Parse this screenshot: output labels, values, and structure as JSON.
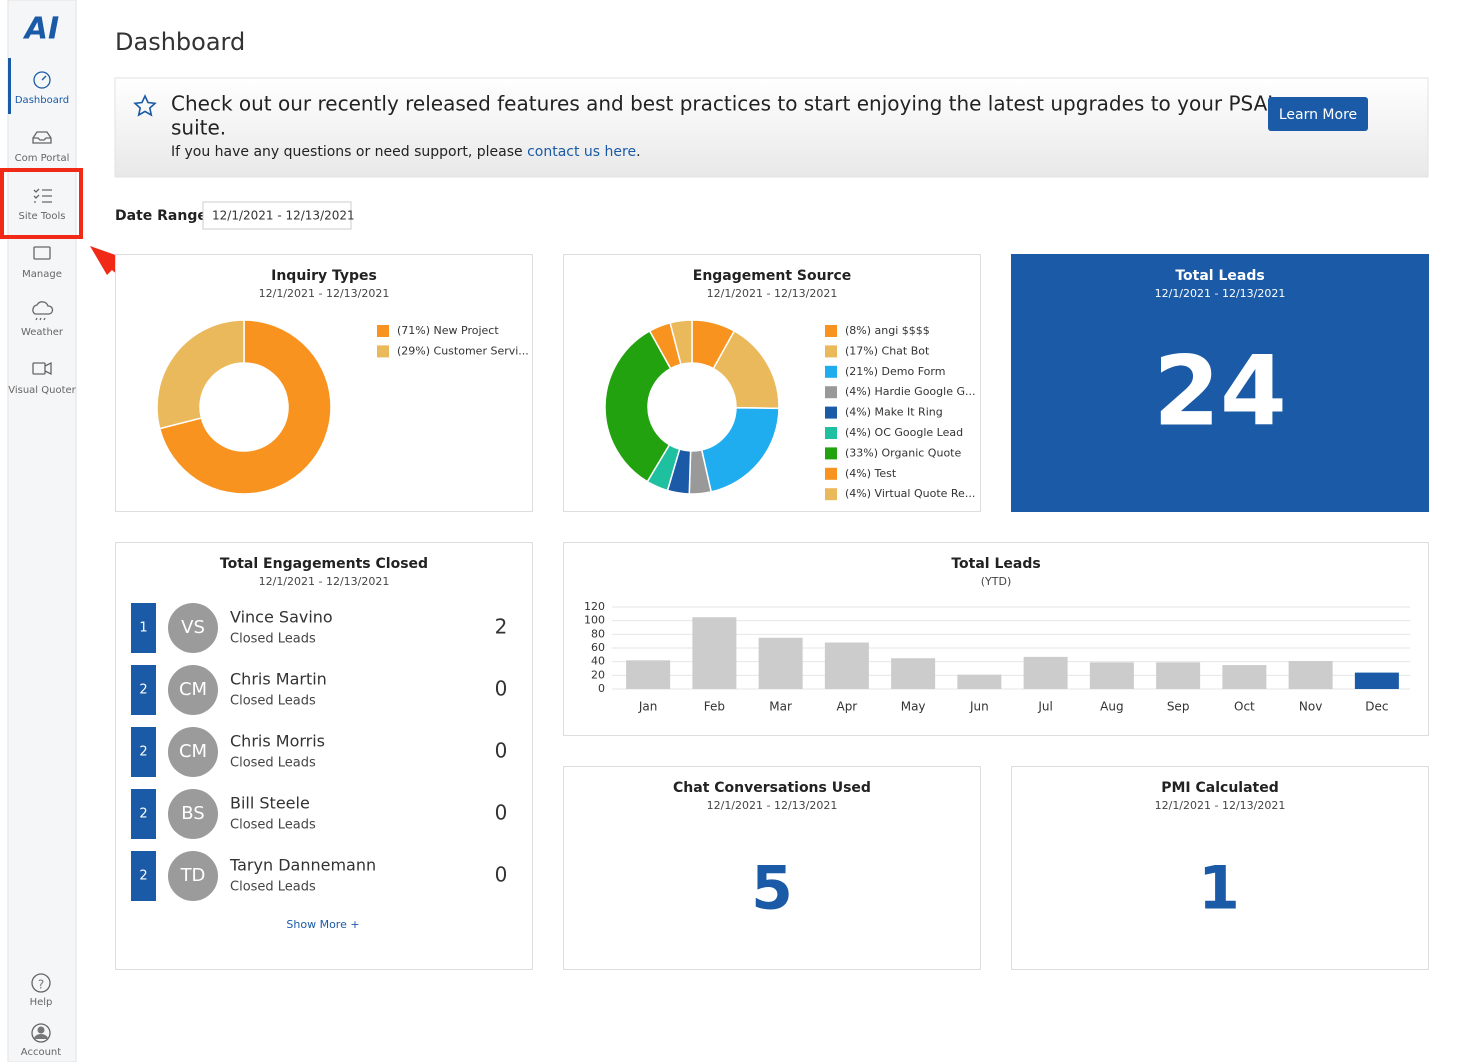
{
  "sidebar": {
    "logo": "AI",
    "nav": [
      {
        "label": "Dashboard",
        "active": true
      },
      {
        "label": "Com Portal",
        "active": false
      },
      {
        "label": "Site Tools",
        "active": false
      },
      {
        "label": "Manage",
        "active": false
      },
      {
        "label": "Weather",
        "active": false
      },
      {
        "label": "Visual Quoter",
        "active": false
      }
    ],
    "bottom": [
      {
        "label": "Help"
      },
      {
        "label": "Account"
      }
    ]
  },
  "header": {
    "title": "Dashboard"
  },
  "banner": {
    "message_lines": [
      "Check out our recently released features and best practices to start enjoying the latest upgrades to your PSAI",
      "suite."
    ],
    "support_text": "If you have any questions or need support, please ",
    "support_link": "contact us here",
    "support_end": ".",
    "button": "Learn More"
  },
  "date_range": {
    "label": "Date Range",
    "value": "12/1/2021 - 12/13/2021"
  },
  "inquiry_types": {
    "type": "donut",
    "title": "Inquiry Types",
    "subtitle": "12/1/2021 - 12/13/2021",
    "legend": [
      "(71%) New Project",
      "(29%) Customer Servi..."
    ],
    "values": [
      71,
      29
    ],
    "colors": [
      "#f7931e",
      "#e9b95b"
    ]
  },
  "engagement_source": {
    "type": "donut",
    "title": "Engagement Source",
    "subtitle": "12/1/2021 - 12/13/2021",
    "legend": [
      "(8%) angi $$$$",
      "(17%) Chat Bot",
      "(21%) Demo Form",
      "(4%) Hardie Google G...",
      "(4%) Make It Ring",
      "(4%) OC Google Lead",
      "(33%) Organic Quote",
      "(4%) Test",
      "(4%) Virtual Quote Re..."
    ],
    "values": [
      8,
      17,
      21,
      4,
      4,
      4,
      33,
      4,
      4
    ],
    "colors": [
      "#f7931e",
      "#e9b95b",
      "#1fadf0",
      "#999999",
      "#1a5aa6",
      "#1fc0a0",
      "#22a20f",
      "#f7931e",
      "#e9b95b"
    ]
  },
  "total_leads_card": {
    "title": "Total Leads",
    "subtitle": "12/1/2021 - 12/13/2021",
    "value": 24
  },
  "engagements_closed": {
    "title": "Total Engagements Closed",
    "subtitle": "12/1/2021 - 12/13/2021",
    "rows": [
      {
        "rank": 1,
        "initials": "VS",
        "name": "Vince Savino",
        "caption": "Closed Leads",
        "count": 2
      },
      {
        "rank": 2,
        "initials": "CM",
        "name": "Chris Martin",
        "caption": "Closed Leads",
        "count": 0
      },
      {
        "rank": 2,
        "initials": "CM",
        "name": "Chris Morris",
        "caption": "Closed Leads",
        "count": 0
      },
      {
        "rank": 2,
        "initials": "BS",
        "name": "Bill Steele",
        "caption": "Closed Leads",
        "count": 0
      },
      {
        "rank": 2,
        "initials": "TD",
        "name": "Taryn Dannemann",
        "caption": "Closed Leads",
        "count": 0
      }
    ],
    "show_more": "Show More +"
  },
  "total_leads_chart": {
    "type": "bar",
    "title": "Total Leads",
    "subtitle": "(YTD)",
    "categories": [
      "Jan",
      "Feb",
      "Mar",
      "Apr",
      "May",
      "Jun",
      "Jul",
      "Aug",
      "Sep",
      "Oct",
      "Nov",
      "Dec"
    ],
    "values": [
      42,
      105,
      75,
      68,
      45,
      21,
      47,
      39,
      39,
      35,
      41,
      24
    ],
    "colors": [
      "#cccccc",
      "#cccccc",
      "#cccccc",
      "#cccccc",
      "#cccccc",
      "#cccccc",
      "#cccccc",
      "#cccccc",
      "#cccccc",
      "#cccccc",
      "#cccccc",
      "#1a5aa6"
    ],
    "ylim": [
      0,
      120
    ],
    "yticks": [
      0,
      20,
      40,
      60,
      80,
      100,
      120
    ],
    "grid": true
  },
  "chat_conversations": {
    "title": "Chat Conversations Used",
    "subtitle": "12/1/2021 - 12/13/2021",
    "value": 5
  },
  "pmi_calculated": {
    "title": "PMI Calculated",
    "subtitle": "12/1/2021 - 12/13/2021",
    "value": 1
  }
}
